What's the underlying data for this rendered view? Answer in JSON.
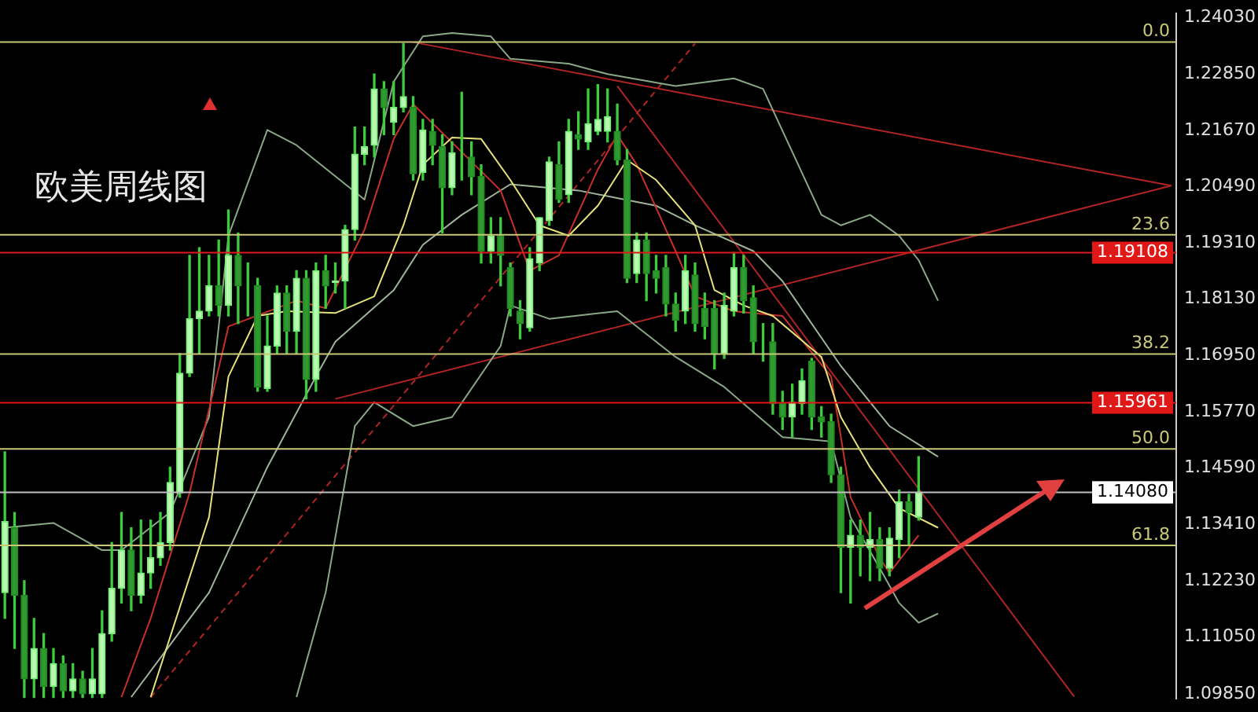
{
  "chart_data": {
    "type": "candlestick",
    "title": "欧美周线图",
    "categories": [
      null,
      null,
      null,
      null,
      null,
      null,
      null,
      null,
      null,
      null,
      null,
      null,
      null,
      null,
      null,
      null,
      null,
      null,
      null,
      null,
      null,
      null,
      null,
      null,
      null,
      null,
      null,
      null,
      null,
      null,
      null,
      null,
      null,
      null,
      null,
      null,
      null,
      null,
      null,
      null,
      null,
      null,
      null,
      null,
      null,
      null,
      null,
      null,
      null,
      null,
      null,
      null,
      null,
      null,
      null,
      null,
      null,
      null,
      null,
      null,
      null,
      null,
      null,
      null,
      null,
      null,
      null,
      null,
      null,
      null,
      null,
      null,
      null,
      null,
      null,
      null,
      null,
      null,
      null,
      null,
      null,
      null,
      null,
      null,
      null,
      null,
      null,
      null,
      null,
      null,
      null,
      null,
      null,
      null,
      null,
      null,
      null,
      null,
      null,
      null,
      null,
      null,
      null,
      null,
      null,
      null,
      null,
      null,
      null,
      null,
      null,
      null,
      null,
      null,
      null,
      null,
      null,
      null,
      null,
      null,
      null
    ],
    "ohlc": [
      [
        1.1198,
        1.1493,
        1.1144,
        1.1347
      ],
      [
        1.1334,
        1.1366,
        1.1081,
        1.1192
      ],
      [
        1.1192,
        1.1223,
        1.0978,
        1.1017
      ],
      [
        1.1017,
        1.1144,
        1.0978,
        1.1081
      ],
      [
        1.1081,
        1.1112,
        1.0978,
        1.1001
      ],
      [
        1.1001,
        1.1081,
        1.0978,
        1.1049
      ],
      [
        1.1049,
        1.1065,
        1.0978,
        1.0992
      ],
      [
        1.0992,
        1.1049,
        1.0978,
        1.1017
      ],
      [
        1.1017,
        1.1033,
        1.0978,
        1.0986
      ],
      [
        1.0986,
        1.1081,
        1.0978,
        1.1017
      ],
      [
        1.0986,
        1.116,
        1.0978,
        1.1112
      ],
      [
        1.1112,
        1.1303,
        1.1096,
        1.1207
      ],
      [
        1.1207,
        1.1366,
        1.1176,
        1.1287
      ],
      [
        1.1287,
        1.1334,
        1.116,
        1.1192
      ],
      [
        1.1192,
        1.135,
        1.1176,
        1.1239
      ],
      [
        1.1239,
        1.135,
        1.1207,
        1.1271
      ],
      [
        1.1271,
        1.1366,
        1.1255,
        1.1303
      ],
      [
        1.1303,
        1.1461,
        1.1287,
        1.1429
      ],
      [
        1.1407,
        1.1699,
        1.1398,
        1.1658
      ],
      [
        1.1658,
        1.1905,
        1.1651,
        1.1772
      ],
      [
        1.1772,
        1.1921,
        1.1699,
        1.1788
      ],
      [
        1.1788,
        1.1905,
        1.1778,
        1.1841
      ],
      [
        1.1841,
        1.1937,
        1.1778,
        1.18
      ],
      [
        1.18,
        1.2,
        1.1778,
        1.1905
      ],
      [
        1.1905,
        1.1952,
        1.1762,
        1.1841
      ],
      [
        1.1841,
        1.1889,
        1.1778,
        1.1841
      ],
      [
        1.1841,
        1.1857,
        1.162,
        1.1629
      ],
      [
        1.1626,
        1.1778,
        1.162,
        1.1715
      ],
      [
        1.1715,
        1.1841,
        1.1699,
        1.1826
      ],
      [
        1.1826,
        1.1841,
        1.1699,
        1.1746
      ],
      [
        1.1746,
        1.1873,
        1.1699,
        1.1857
      ],
      [
        1.1857,
        1.1873,
        1.1604,
        1.1645
      ],
      [
        1.1645,
        1.1889,
        1.162,
        1.1873
      ],
      [
        1.1873,
        1.1905,
        1.1794,
        1.1841
      ],
      [
        1.1848,
        1.1889,
        1.1826,
        1.1851
      ],
      [
        1.1851,
        1.1968,
        1.1794,
        1.1959
      ],
      [
        1.1959,
        1.2174,
        1.1937,
        1.2117
      ],
      [
        1.2117,
        1.2174,
        1.2095,
        1.2133
      ],
      [
        1.2136,
        1.2285,
        1.2111,
        1.2254
      ],
      [
        1.2254,
        1.2269,
        1.2158,
        1.2215
      ],
      [
        1.2184,
        1.2269,
        1.2158,
        1.2215
      ],
      [
        1.2215,
        1.2349,
        1.2206,
        1.2238
      ],
      [
        1.2215,
        1.2238,
        1.2063,
        1.2076
      ],
      [
        1.2079,
        1.219,
        1.2063,
        1.2168
      ],
      [
        1.2165,
        1.219,
        1.2095,
        1.2136
      ],
      [
        1.2133,
        1.2158,
        1.1952,
        1.2047
      ],
      [
        1.2047,
        1.2143,
        1.2032,
        1.212
      ],
      [
        1.212,
        1.2247,
        1.2063,
        1.212
      ],
      [
        1.2111,
        1.2143,
        1.2032,
        1.207
      ],
      [
        1.207,
        1.2095,
        1.1889,
        1.1914
      ],
      [
        1.1914,
        1.1984,
        1.1889,
        1.1946
      ],
      [
        1.1946,
        1.1984,
        1.1841,
        1.1905
      ],
      [
        1.1879,
        1.1889,
        1.1778,
        1.1794
      ],
      [
        1.1788,
        1.181,
        1.173,
        1.1762
      ],
      [
        1.1753,
        1.1921,
        1.1746,
        1.1898
      ],
      [
        1.1889,
        1.1984,
        1.1873,
        1.1984
      ],
      [
        1.1978,
        1.2111,
        1.1968,
        1.2101
      ],
      [
        1.2095,
        1.2143,
        1.2016,
        1.2022
      ],
      [
        1.2032,
        1.219,
        1.2016,
        1.2165
      ],
      [
        1.2158,
        1.2206,
        1.2127,
        1.2149
      ],
      [
        1.2143,
        1.2254,
        1.2127,
        1.2181
      ],
      [
        1.2165,
        1.2263,
        1.2158,
        1.219
      ],
      [
        1.2165,
        1.2254,
        1.2143,
        1.2196
      ],
      [
        1.2165,
        1.2222,
        1.2095,
        1.2105
      ],
      [
        1.2105,
        1.2127,
        1.1848,
        1.1857
      ],
      [
        1.1867,
        1.1952,
        1.1848,
        1.1937
      ],
      [
        1.1937,
        1.1952,
        1.181,
        1.1867
      ],
      [
        1.1873,
        1.1905,
        1.1826,
        1.1857
      ],
      [
        1.1879,
        1.1905,
        1.1778,
        1.1803
      ],
      [
        1.1803,
        1.1826,
        1.1746,
        1.1769
      ],
      [
        1.1788,
        1.1905,
        1.1762,
        1.1873
      ],
      [
        1.1864,
        1.1889,
        1.1746,
        1.1762
      ],
      [
        1.1794,
        1.1826,
        1.173,
        1.1756
      ],
      [
        1.1794,
        1.181,
        1.1667,
        1.1699
      ],
      [
        1.1699,
        1.1826,
        1.1689,
        1.18
      ],
      [
        1.1788,
        1.1911,
        1.1778,
        1.1879
      ],
      [
        1.1879,
        1.1905,
        1.1784,
        1.181
      ],
      [
        1.1816,
        1.1841,
        1.1699,
        1.1724
      ],
      [
        1.1724,
        1.1762,
        1.1683,
        1.1724
      ],
      [
        1.1724,
        1.1762,
        1.1572,
        1.1594
      ],
      [
        1.1594,
        1.162,
        1.154,
        1.1566
      ],
      [
        1.1566,
        1.1635,
        1.1524,
        1.1597
      ],
      [
        1.1594,
        1.1667,
        1.1572,
        1.1642
      ],
      [
        1.1683,
        1.1689,
        1.154,
        1.1566
      ],
      [
        1.1566,
        1.1588,
        1.1524,
        1.1556
      ],
      [
        1.1556,
        1.1572,
        1.1429,
        1.1445
      ],
      [
        1.1445,
        1.1461,
        1.1198,
        1.1293
      ],
      [
        1.1293,
        1.135,
        1.1176,
        1.1318
      ],
      [
        1.1318,
        1.135,
        1.1233,
        1.1293
      ],
      [
        1.1293,
        1.1366,
        1.1223,
        1.1309
      ],
      [
        1.1309,
        1.1334,
        1.1223,
        1.1249
      ],
      [
        1.1249,
        1.1334,
        1.1233,
        1.1312
      ],
      [
        1.1309,
        1.1413,
        1.1271,
        1.1388
      ],
      [
        1.1388,
        1.1404,
        1.1296,
        1.1366
      ],
      [
        1.1356,
        1.1483,
        1.135,
        1.1408
      ],
      null,
      null,
      null,
      null,
      null,
      null,
      null,
      null,
      null,
      null,
      null,
      null,
      null,
      null,
      null,
      null,
      null,
      null,
      null,
      null,
      null,
      null,
      null,
      null,
      null,
      null
    ],
    "series": [
      {
        "type": "line",
        "color": "#e6e27a",
        "values": [
          null,
          null,
          null,
          null,
          null,
          null,
          null,
          null,
          null,
          null,
          null,
          null,
          null,
          null,
          null,
          1.0979,
          null,
          null,
          null,
          null,
          null,
          1.1356,
          null,
          1.1651,
          null,
          null,
          1.1778,
          null,
          null,
          1.1788,
          null,
          null,
          null,
          null,
          1.1784,
          null,
          null,
          null,
          1.1819,
          null,
          null,
          1.1968,
          null,
          1.2095,
          null,
          null,
          1.2152,
          null,
          null,
          1.2149,
          null,
          null,
          1.2063,
          null,
          null,
          1.1968,
          null,
          null,
          1.1946,
          null,
          null,
          1.2009,
          null,
          null,
          1.2105,
          null,
          null,
          1.2063,
          null,
          null,
          null,
          1.1968,
          null,
          1.1832,
          null,
          null,
          1.18,
          null,
          null,
          1.1778,
          null,
          null,
          null,
          null,
          1.1692,
          null,
          1.1566,
          null,
          null,
          1.1461,
          null,
          null,
          1.1375,
          null,
          null,
          null,
          1.1334,
          null,
          null,
          null,
          null,
          null,
          null,
          null,
          null,
          null,
          null,
          null,
          null,
          null,
          null,
          null,
          null,
          null,
          null,
          null,
          null,
          null,
          null,
          null,
          null
        ]
      },
      {
        "type": "line",
        "color": "#c8302a",
        "values": [
          null,
          null,
          null,
          null,
          null,
          null,
          null,
          null,
          null,
          null,
          null,
          null,
          1.0979,
          null,
          null,
          1.1144,
          null,
          null,
          null,
          1.1407,
          null,
          null,
          null,
          1.1756,
          null,
          null,
          null,
          null,
          null,
          null,
          1.181,
          null,
          null,
          1.1794,
          null,
          null,
          null,
          1.1959,
          null,
          null,
          1.2149,
          null,
          1.2222,
          null,
          null,
          null,
          null,
          null,
          null,
          null,
          null,
          1.2041,
          null,
          null,
          1.1873,
          null,
          null,
          1.1905,
          null,
          null,
          null,
          1.2085,
          null,
          1.2158,
          null,
          1.2095,
          null,
          null,
          null,
          1.1914,
          null,
          1.1819,
          null,
          null,
          null,
          1.1788,
          null,
          null,
          null,
          null,
          1.1778,
          null,
          null,
          null,
          null,
          1.1651,
          null,
          1.1398,
          null,
          null,
          1.1271,
          1.1239,
          null,
          null,
          1.1318,
          null,
          null,
          null,
          null,
          null,
          null,
          null,
          null,
          null,
          null,
          null,
          null,
          null,
          null,
          null,
          null,
          null,
          null,
          null,
          null,
          null,
          null,
          null,
          null,
          null,
          null
        ]
      },
      {
        "type": "line",
        "color": "#9fb59a",
        "values": [
          null,
          null,
          null,
          null,
          null,
          null,
          null,
          null,
          null,
          null,
          null,
          null,
          null,
          1.0979,
          null,
          null,
          null,
          null,
          null,
          null,
          null,
          1.1198,
          null,
          null,
          null,
          null,
          null,
          1.1461,
          null,
          null,
          null,
          null,
          1.1651,
          null,
          1.1724,
          null,
          null,
          null,
          null,
          null,
          1.1832,
          null,
          null,
          1.1927,
          null,
          null,
          null,
          1.199,
          null,
          null,
          null,
          null,
          1.2054,
          null,
          null,
          null,
          null,
          null,
          null,
          1.2041,
          null,
          null,
          null,
          null,
          null,
          null,
          null,
          1.2009,
          null,
          null,
          null,
          1.1968,
          null,
          null,
          null,
          null,
          null,
          1.1914,
          null,
          null,
          1.1851,
          null,
          null,
          null,
          null,
          null,
          1.1673,
          null,
          null,
          null,
          null,
          1.1547,
          null,
          null,
          null,
          null,
          1.1483,
          null,
          null,
          null,
          null,
          null,
          null,
          null,
          null,
          null,
          null,
          null,
          null,
          null,
          null,
          null,
          null,
          null,
          null,
          null,
          null,
          null,
          null,
          null,
          null
        ]
      },
      {
        "type": "line",
        "color": "#8aa888",
        "values": [
          1.1334,
          null,
          null,
          null,
          null,
          1.1344,
          null,
          null,
          null,
          null,
          1.1287,
          null,
          1.1287,
          null,
          null,
          null,
          null,
          1.1366,
          null,
          null,
          null,
          1.1566,
          null,
          1.1946,
          null,
          null,
          null,
          1.2168,
          null,
          null,
          1.2136,
          null,
          null,
          null,
          null,
          null,
          null,
          1.2022,
          null,
          null,
          1.2269,
          null,
          null,
          1.2364,
          null,
          null,
          1.2371,
          null,
          null,
          null,
          1.2364,
          null,
          1.2317,
          null,
          null,
          null,
          null,
          null,
          1.2307,
          null,
          null,
          null,
          1.2285,
          null,
          null,
          null,
          null,
          null,
          null,
          1.226,
          null,
          null,
          null,
          null,
          null,
          1.2276,
          null,
          null,
          1.2254,
          null,
          null,
          null,
          null,
          null,
          1.199,
          null,
          1.1968,
          null,
          null,
          1.199,
          null,
          null,
          1.1946,
          null,
          1.1895,
          null,
          1.181,
          null,
          null,
          null,
          null,
          null,
          null,
          null,
          null,
          null,
          null,
          null,
          null,
          null,
          null,
          null,
          null,
          null,
          null,
          null,
          null,
          null,
          null,
          null,
          null
        ]
      },
      {
        "type": "line",
        "color": "#8aa888",
        "values": [
          null,
          null,
          null,
          null,
          null,
          null,
          null,
          null,
          null,
          null,
          null,
          null,
          null,
          null,
          null,
          null,
          null,
          null,
          null,
          null,
          null,
          null,
          null,
          null,
          null,
          null,
          null,
          null,
          null,
          null,
          1.0979,
          null,
          null,
          1.1198,
          null,
          null,
          1.1547,
          null,
          1.1597,
          null,
          null,
          null,
          1.1547,
          null,
          null,
          null,
          1.1566,
          null,
          null,
          null,
          null,
          1.1715,
          1.18,
          null,
          null,
          null,
          1.1772,
          null,
          null,
          null,
          null,
          null,
          null,
          1.1788,
          null,
          null,
          null,
          null,
          null,
          1.1692,
          null,
          null,
          null,
          null,
          1.1629,
          null,
          null,
          null,
          null,
          null,
          1.1524,
          null,
          null,
          null,
          null,
          1.1515,
          null,
          1.1356,
          null,
          null,
          1.1249,
          null,
          1.1176,
          null,
          1.1135,
          null,
          1.1154,
          null,
          null,
          null,
          null,
          null,
          null,
          null,
          null,
          null,
          null,
          null,
          null,
          null,
          null,
          null,
          null,
          null,
          null,
          null,
          null,
          null,
          null,
          null,
          null
        ]
      },
      {
        "type": "line",
        "color": "#b02424",
        "values": [
          null,
          null,
          null,
          null,
          null,
          null,
          null,
          null,
          null,
          null,
          null,
          null,
          null,
          null,
          null,
          null,
          null,
          null,
          null,
          null,
          null,
          null,
          null,
          null,
          null,
          null,
          null,
          null,
          null,
          null,
          null,
          null,
          null,
          null,
          null,
          null,
          null,
          null,
          null,
          null,
          null,
          null,
          1.2352,
          null,
          null,
          null,
          null,
          null,
          null,
          null,
          null,
          null,
          null,
          null,
          null,
          null,
          null,
          null,
          null,
          null,
          null,
          null,
          null,
          null,
          null,
          null,
          null,
          null,
          null,
          null,
          null,
          null,
          null,
          null,
          null,
          null,
          null,
          null,
          null,
          null,
          null,
          null,
          null,
          null,
          null,
          null,
          null,
          null,
          null,
          null,
          null,
          null,
          null,
          null,
          null,
          null,
          null,
          null,
          null,
          null,
          null,
          null,
          null,
          null,
          null,
          null,
          null,
          null,
          null,
          null,
          null,
          null,
          null,
          null,
          null,
          null,
          null,
          null,
          null,
          null,
          1.2051
        ]
      },
      {
        "type": "line",
        "color": "#b02424",
        "values": [
          null,
          null,
          null,
          null,
          null,
          null,
          null,
          null,
          null,
          null,
          null,
          null,
          null,
          null,
          null,
          null,
          null,
          null,
          null,
          null,
          null,
          null,
          null,
          null,
          null,
          null,
          null,
          null,
          null,
          null,
          null,
          null,
          null,
          null,
          1.1604,
          null,
          null,
          null,
          null,
          null,
          null,
          null,
          null,
          null,
          null,
          null,
          null,
          null,
          null,
          null,
          null,
          null,
          null,
          null,
          null,
          null,
          null,
          null,
          null,
          null,
          null,
          null,
          null,
          null,
          null,
          null,
          null,
          null,
          null,
          null,
          null,
          null,
          null,
          null,
          null,
          null,
          null,
          null,
          null,
          null,
          null,
          null,
          null,
          null,
          null,
          null,
          null,
          null,
          null,
          null,
          null,
          null,
          null,
          null,
          null,
          null,
          null,
          null,
          null,
          null,
          null,
          null,
          null,
          null,
          null,
          null,
          null,
          null,
          null,
          null,
          null,
          null,
          null,
          null,
          null,
          null,
          null,
          null,
          null,
          null,
          1.2051
        ]
      },
      {
        "type": "line",
        "color": "#b02424",
        "values": [
          null,
          null,
          null,
          null,
          null,
          null,
          null,
          null,
          null,
          null,
          null,
          null,
          null,
          null,
          null,
          null,
          null,
          null,
          null,
          null,
          null,
          null,
          null,
          null,
          null,
          null,
          null,
          null,
          null,
          null,
          null,
          null,
          null,
          null,
          null,
          null,
          null,
          null,
          null,
          null,
          null,
          null,
          null,
          null,
          null,
          null,
          null,
          null,
          null,
          null,
          null,
          null,
          null,
          null,
          null,
          null,
          null,
          null,
          null,
          null,
          null,
          null,
          null,
          1.226,
          null,
          null,
          null,
          null,
          null,
          null,
          null,
          null,
          null,
          null,
          null,
          null,
          null,
          null,
          null,
          null,
          null,
          null,
          null,
          null,
          null,
          null,
          null,
          null,
          null,
          null,
          null,
          null,
          null,
          null,
          null,
          null,
          null,
          null,
          null,
          null,
          null,
          null,
          null,
          null,
          null,
          null,
          null,
          null,
          null,
          null,
          1.098,
          null,
          null,
          null,
          null,
          null,
          null,
          null,
          null,
          null,
          null
        ]
      },
      {
        "type": "line",
        "color": "#b02424",
        "line_style": "dashed",
        "values": [
          null,
          null,
          null,
          null,
          null,
          null,
          null,
          null,
          null,
          null,
          null,
          null,
          null,
          null,
          null,
          1.0978,
          null,
          null,
          null,
          null,
          null,
          null,
          null,
          null,
          null,
          null,
          null,
          null,
          null,
          null,
          null,
          null,
          null,
          null,
          null,
          null,
          null,
          null,
          null,
          null,
          null,
          null,
          null,
          null,
          null,
          null,
          null,
          null,
          null,
          null,
          null,
          null,
          null,
          null,
          null,
          null,
          null,
          null,
          null,
          null,
          null,
          null,
          null,
          null,
          null,
          null,
          null,
          null,
          null,
          null,
          null,
          1.2349,
          null,
          null,
          null,
          null,
          null,
          null,
          null,
          null,
          null,
          null,
          null,
          null,
          null,
          null,
          null,
          null,
          null,
          null,
          null,
          null,
          null,
          null,
          null,
          null,
          null,
          null,
          null,
          null,
          null,
          null,
          null,
          null,
          null,
          null,
          null,
          null,
          null,
          null,
          null,
          null,
          null,
          null,
          null,
          null,
          null,
          null,
          null,
          null,
          null
        ]
      }
    ],
    "ref_lines": [
      {
        "axis": "y",
        "value": 1.2352,
        "color": "#c8c878"
      },
      {
        "axis": "y",
        "value": 1.1948,
        "color": "#c8c878"
      },
      {
        "axis": "y",
        "value": 1.1698,
        "color": "#c8c878"
      },
      {
        "axis": "y",
        "value": 1.1499,
        "color": "#c8c878"
      },
      {
        "axis": "y",
        "value": 1.1297,
        "color": "#c8c878"
      },
      {
        "axis": "y",
        "value": 1.19108,
        "label": "1.19108",
        "color": "#e01818"
      },
      {
        "axis": "y",
        "value": 1.15961,
        "label": "1.15961",
        "color": "#e01818"
      },
      {
        "axis": "y",
        "value": 1.1408,
        "label": "1.14080",
        "color": "#c0c0c0"
      }
    ],
    "annotations": [
      {
        "text": "0.0",
        "y": 1.2352
      },
      {
        "text": "23.6",
        "y": 1.1948
      },
      {
        "text": "38.2",
        "y": 1.1698
      },
      {
        "text": "50.0",
        "y": 1.1499
      },
      {
        "text": "61.8",
        "y": 1.1297
      }
    ],
    "ylim": [
      1.0976,
      1.2412
    ],
    "yticks": [
      {
        "value": 1.2403,
        "label": "1.24030"
      },
      {
        "value": 1.2285,
        "label": "1.22850"
      },
      {
        "value": 1.2167,
        "label": "1.21670"
      },
      {
        "value": 1.2049,
        "label": "1.20490"
      },
      {
        "value": 1.1931,
        "label": "1.19310"
      },
      {
        "value": 1.1813,
        "label": "1.18130"
      },
      {
        "value": 1.1695,
        "label": "1.16950"
      },
      {
        "value": 1.1577,
        "label": "1.15770"
      },
      {
        "value": 1.1459,
        "label": "1.14590"
      },
      {
        "value": 1.1341,
        "label": "1.13410"
      },
      {
        "value": 1.1223,
        "label": "1.12230"
      },
      {
        "value": 1.1105,
        "label": "1.11050"
      },
      {
        "value": 1.0985,
        "label": "1.09850"
      }
    ],
    "tick_labels": "y"
  }
}
